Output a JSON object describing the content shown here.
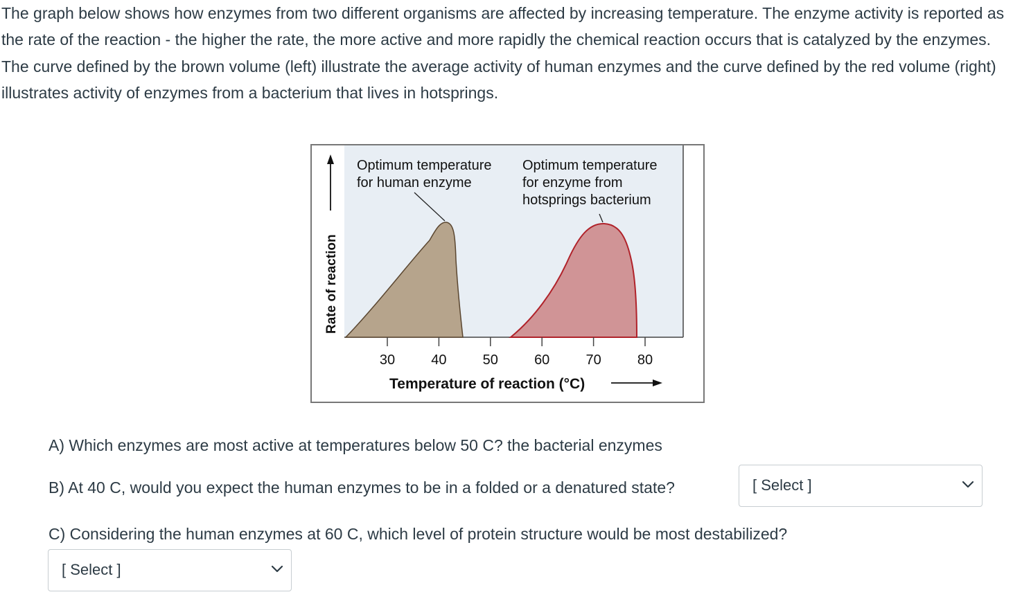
{
  "intro": "The graph below shows how enzymes from two different organisms are affected by increasing temperature.  The enzyme activity is reported as the rate of the reaction - the higher the rate, the more active and more rapidly the chemical reaction occurs that is catalyzed by the enzymes. The curve defined by the brown volume (left) illustrate the average activity of human enzymes and the curve defined by the red volume (right) illustrates activity of enzymes from a bacterium that lives in hotsprings.",
  "figure": {
    "ylabel": "Rate of reaction",
    "xlabel": "Temperature of reaction (°C)",
    "ticks": [
      "30",
      "40",
      "50",
      "60",
      "70",
      "80"
    ],
    "human_label_line1": "Optimum temperature",
    "human_label_line2": "for human enzyme",
    "bact_label_line1": "Optimum temperature",
    "bact_label_line2": "for enzyme from",
    "bact_label_line3": "hotsprings bacterium",
    "colors": {
      "plot_bg": "#e8eef4",
      "human_fill": "#b6a48c",
      "human_stroke": "#5a4630",
      "bact_fill": "#d09496",
      "bact_stroke": "#b0222a"
    }
  },
  "chart_data": {
    "type": "area",
    "xlabel": "Temperature of reaction (°C)",
    "ylabel": "Rate of reaction",
    "xticks": [
      30,
      40,
      50,
      60,
      70,
      80
    ],
    "series": [
      {
        "x": [
          25,
          30,
          35,
          40,
          42,
          43
        ],
        "y": [
          0,
          0.22,
          0.55,
          0.95,
          0.8,
          0
        ]
      },
      {
        "x": [
          59,
          63,
          66,
          70,
          73,
          75,
          76
        ],
        "y": [
          0,
          0.2,
          0.55,
          0.96,
          0.85,
          0.5,
          0
        ]
      }
    ]
  },
  "questions": {
    "a": "A) Which enzymes are most active at temperatures below 50 C? the bacterial enzymes",
    "b": "B) At 40 C, would you expect the human enzymes to be in a folded or a denatured state?",
    "c": "C) Considering the human enzymes at 60 C, which level of protein structure would be most destabilized?"
  },
  "selects": {
    "b": "[ Select ]",
    "c": "[ Select ]"
  },
  "icons": {
    "dropdown": "chevron-down-icon"
  }
}
